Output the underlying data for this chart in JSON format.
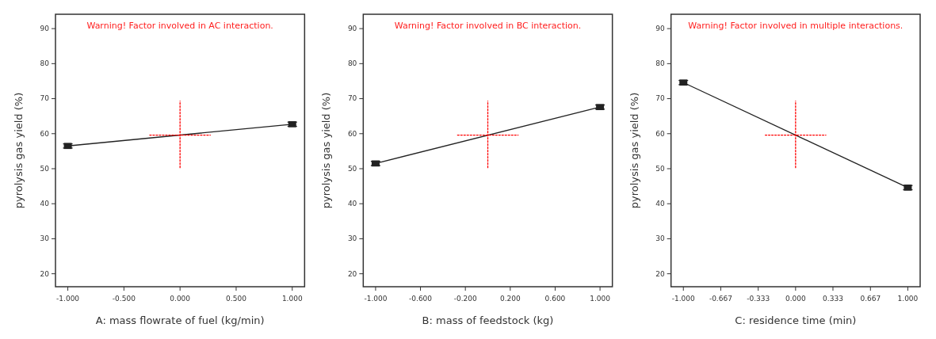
{
  "chart_data": [
    {
      "type": "line",
      "xlabel": "A: mass flowrate of fuel (kg/min)",
      "ylabel": "pyrolysis gas yield (%)",
      "annotations": [
        "Warning! Factor involved in AC interaction."
      ],
      "xlim": [
        -1.11,
        1.11
      ],
      "ylim": [
        16.3,
        94.1
      ],
      "xticks": [
        {
          "value": -1,
          "label": "-1.000"
        },
        {
          "value": -0.5,
          "label": "-0.500"
        },
        {
          "value": 0,
          "label": "0.000"
        },
        {
          "value": 0.5,
          "label": "0.500"
        },
        {
          "value": 1,
          "label": "1.000"
        }
      ],
      "yticks": [
        20,
        30,
        40,
        50,
        60,
        70,
        80,
        90
      ],
      "marker": "square",
      "series": [
        {
          "x": [
            -1,
            1
          ],
          "values": [
            56.5,
            62.7
          ],
          "errors": [
            0.6,
            0.6
          ],
          "color": "#222222"
        },
        {
          "x": [
            -0.27,
            0.27
          ],
          "values": [
            59.6,
            59.6
          ],
          "color": "#ff0000",
          "line_style": "dotted",
          "marker": "none"
        },
        {
          "x": [
            0,
            0
          ],
          "values": [
            50.3,
            69.3
          ],
          "color": "#ff0000",
          "line_style": "dotted",
          "marker": "none"
        }
      ]
    },
    {
      "type": "line",
      "xlabel": "B: mass of feedstock (kg)",
      "ylabel": "pyrolysis gas yield (%)",
      "annotations": [
        "Warning! Factor involved in BC interaction."
      ],
      "xlim": [
        -1.11,
        1.11
      ],
      "ylim": [
        16.3,
        94.1
      ],
      "xticks": [
        {
          "value": -1,
          "label": "-1.000"
        },
        {
          "value": -0.6,
          "label": "-0.600"
        },
        {
          "value": -0.2,
          "label": "-0.200"
        },
        {
          "value": 0.2,
          "label": "0.200"
        },
        {
          "value": 0.6,
          "label": "0.600"
        },
        {
          "value": 1,
          "label": "1.000"
        }
      ],
      "yticks": [
        20,
        30,
        40,
        50,
        60,
        70,
        80,
        90
      ],
      "marker": "square",
      "series": [
        {
          "x": [
            -1,
            1
          ],
          "values": [
            51.5,
            67.6
          ],
          "errors": [
            0.6,
            0.6
          ],
          "color": "#222222"
        },
        {
          "x": [
            -0.27,
            0.27
          ],
          "values": [
            59.6,
            59.6
          ],
          "color": "#ff0000",
          "line_style": "dotted",
          "marker": "none"
        },
        {
          "x": [
            0,
            0
          ],
          "values": [
            50.3,
            69.3
          ],
          "color": "#ff0000",
          "line_style": "dotted",
          "marker": "none"
        }
      ]
    },
    {
      "type": "line",
      "xlabel": "C: residence time (min)",
      "ylabel": "pyrolysis gas yield (%)",
      "annotations": [
        "Warning! Factor involved in multiple interactions."
      ],
      "xlim": [
        -1.11,
        1.11
      ],
      "ylim": [
        16.3,
        94.1
      ],
      "xticks": [
        {
          "value": -1,
          "label": "-1.000"
        },
        {
          "value": -0.667,
          "label": "-0.667"
        },
        {
          "value": -0.333,
          "label": "-0.333"
        },
        {
          "value": 0,
          "label": "0.000"
        },
        {
          "value": 0.333,
          "label": "0.333"
        },
        {
          "value": 0.667,
          "label": "0.667"
        },
        {
          "value": 1,
          "label": "1.000"
        }
      ],
      "yticks": [
        20,
        30,
        40,
        50,
        60,
        70,
        80,
        90
      ],
      "marker": "square",
      "series": [
        {
          "x": [
            -1,
            1
          ],
          "values": [
            74.6,
            44.6
          ],
          "errors": [
            0.6,
            0.6
          ],
          "color": "#222222"
        },
        {
          "x": [
            -0.27,
            0.27
          ],
          "values": [
            59.6,
            59.6
          ],
          "color": "#ff0000",
          "line_style": "dotted",
          "marker": "none"
        },
        {
          "x": [
            0,
            0
          ],
          "values": [
            50.3,
            69.3
          ],
          "color": "#ff0000",
          "line_style": "dotted",
          "marker": "none"
        }
      ]
    }
  ]
}
